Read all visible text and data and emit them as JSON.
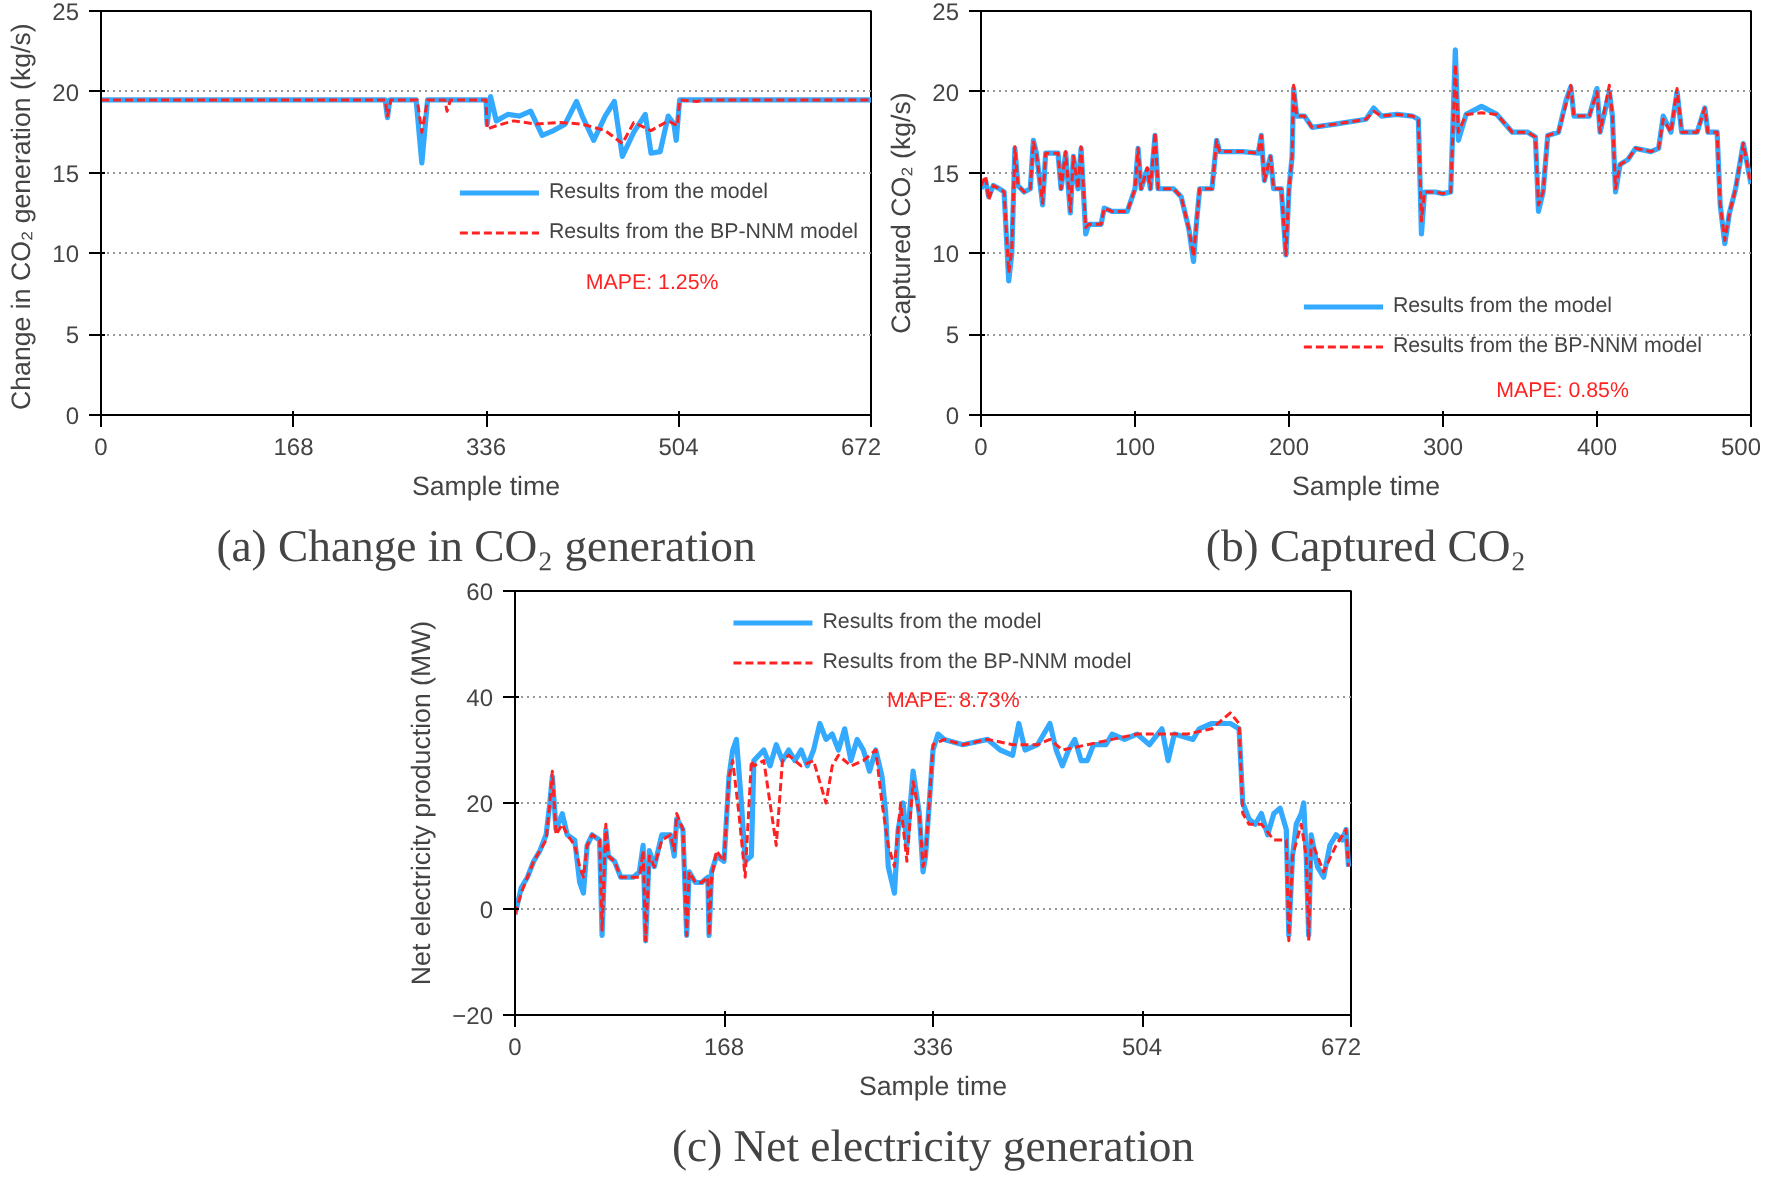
{
  "chart_data": [
    {
      "type": "line",
      "title": "(a) Change in CO₂ generation",
      "xlabel": "Sample time",
      "ylabel": "Change in  CO₂ generation (kg/s)",
      "xlim": [
        0,
        672
      ],
      "xticks": [
        0,
        168,
        336,
        504,
        672
      ],
      "ylim": [
        0,
        25
      ],
      "yticks": [
        0,
        5,
        10,
        15,
        20,
        25
      ],
      "grid": "y",
      "legend": "right",
      "annotations": [
        "MAPE: 1.25%"
      ],
      "series": [
        {
          "name": "Results from the model",
          "color": "#33aaff",
          "line_style": "solid",
          "x": [
            0,
            248,
            250,
            252,
            275,
            280,
            285,
            336,
            337,
            340,
            345,
            355,
            365,
            375,
            385,
            395,
            405,
            415,
            420,
            430,
            440,
            448,
            455,
            465,
            475,
            480,
            488,
            495,
            500,
            502,
            505,
            672
          ],
          "values": [
            19.5,
            19.5,
            18.4,
            19.5,
            19.5,
            15.6,
            19.5,
            19.5,
            18,
            19.7,
            18.2,
            18.6,
            18.5,
            18.8,
            17.3,
            17.6,
            18,
            19.4,
            18.5,
            17,
            18.5,
            19.4,
            16,
            17.5,
            18.6,
            16.2,
            16.3,
            18.5,
            18,
            17,
            19.5,
            19.5
          ]
        },
        {
          "name": "Results from the BP-NNM model",
          "color": "#ff2222",
          "line_style": "dashed",
          "x": [
            0,
            248,
            250,
            253,
            276,
            280,
            285,
            300,
            302,
            305,
            336,
            337,
            345,
            360,
            380,
            400,
            420,
            440,
            455,
            465,
            480,
            495,
            503,
            505,
            520,
            525,
            672
          ],
          "values": [
            19.5,
            19.5,
            18.5,
            19.5,
            19.5,
            17.5,
            19.5,
            19.5,
            18.8,
            19.5,
            19.5,
            17.7,
            17.9,
            18.2,
            18,
            18.1,
            18,
            17.6,
            16.8,
            18.1,
            17.6,
            18.2,
            17.9,
            19.5,
            19.4,
            19.5,
            19.5
          ]
        }
      ]
    },
    {
      "type": "line",
      "title": "(b) Captured CO₂",
      "xlabel": "Sample time",
      "ylabel": "Captured CO₂ (kg/s)",
      "xlim": [
        0,
        500
      ],
      "xticks": [
        0,
        100,
        200,
        300,
        400,
        500
      ],
      "ylim": [
        0,
        25
      ],
      "yticks": [
        0,
        5,
        10,
        15,
        20,
        25
      ],
      "grid": "y",
      "legend": "bottom right",
      "annotations": [
        "MAPE: 0.85%"
      ],
      "series": [
        {
          "name": "Results from the model",
          "color": "#33aaff",
          "line_style": "solid",
          "x": [
            0,
            3,
            5,
            8,
            12,
            15,
            18,
            20,
            22,
            24,
            28,
            32,
            34,
            36,
            40,
            42,
            50,
            52,
            55,
            58,
            60,
            63,
            65,
            68,
            70,
            78,
            80,
            85,
            95,
            100,
            102,
            104,
            108,
            110,
            113,
            115,
            125,
            130,
            135,
            138,
            140,
            142,
            150,
            153,
            155,
            170,
            180,
            182,
            184,
            188,
            190,
            195,
            198,
            200,
            202,
            203,
            205,
            210,
            215,
            230,
            250,
            255,
            260,
            270,
            280,
            284,
            286,
            288,
            295,
            300,
            305,
            308,
            310,
            315,
            325,
            335,
            345,
            355,
            360,
            362,
            365,
            368,
            375,
            380,
            383,
            385,
            395,
            400,
            402,
            408,
            410,
            412,
            415,
            420,
            425,
            435,
            440,
            443,
            448,
            452,
            455,
            465,
            470,
            472,
            478,
            480,
            483,
            486,
            490,
            495,
            500
          ],
          "values": [
            14,
            14.5,
            13.5,
            14.2,
            14,
            13.8,
            8.3,
            10,
            16.5,
            14.2,
            13.8,
            14,
            17,
            16.2,
            13,
            16.2,
            16.2,
            14,
            16.2,
            12.5,
            16,
            14,
            16.5,
            11.2,
            11.8,
            11.8,
            12.8,
            12.6,
            12.6,
            14,
            16.5,
            14,
            15.2,
            14,
            17.3,
            14,
            14,
            13.5,
            11.5,
            9.5,
            12,
            14,
            14,
            17,
            16.3,
            16.3,
            16.2,
            17.3,
            14.5,
            16,
            14,
            14,
            9.9,
            14,
            16,
            20.2,
            18.5,
            18.5,
            17.8,
            18,
            18.3,
            19,
            18.5,
            18.6,
            18.5,
            18.3,
            11.2,
            13.8,
            13.8,
            13.7,
            13.8,
            22.6,
            17,
            18.6,
            19.1,
            18.6,
            17.5,
            17.5,
            17.2,
            12.6,
            13.8,
            17.3,
            17.5,
            19.5,
            20.3,
            18.5,
            18.5,
            20.2,
            17.5,
            20,
            18.5,
            13.8,
            15.5,
            15.8,
            16.5,
            16.3,
            16.5,
            18.5,
            17.5,
            20,
            17.5,
            17.5,
            19,
            17.5,
            17.5,
            13,
            10.6,
            12.5,
            14,
            16.8,
            14.3
          ]
        },
        {
          "name": "Results from the BP-NNM model",
          "color": "#ff2222",
          "line_style": "dashed",
          "x": [
            0,
            3,
            5,
            8,
            12,
            15,
            18,
            20,
            22,
            24,
            28,
            32,
            34,
            36,
            40,
            42,
            50,
            52,
            55,
            58,
            60,
            63,
            65,
            68,
            70,
            78,
            80,
            85,
            95,
            100,
            102,
            104,
            108,
            110,
            113,
            115,
            125,
            130,
            135,
            138,
            140,
            142,
            150,
            153,
            155,
            170,
            180,
            182,
            184,
            188,
            190,
            195,
            198,
            200,
            202,
            203,
            205,
            210,
            215,
            230,
            250,
            255,
            260,
            270,
            280,
            284,
            286,
            288,
            295,
            300,
            305,
            308,
            310,
            315,
            325,
            335,
            345,
            355,
            360,
            362,
            365,
            368,
            375,
            380,
            383,
            385,
            395,
            400,
            402,
            408,
            410,
            412,
            415,
            420,
            425,
            435,
            440,
            443,
            448,
            452,
            455,
            465,
            470,
            472,
            478,
            480,
            483,
            486,
            490,
            495,
            500
          ],
          "values": [
            14.2,
            14.8,
            13.3,
            14.2,
            14,
            13.8,
            8.8,
            10.2,
            16.6,
            14.2,
            13.8,
            14,
            16.9,
            16.2,
            13.1,
            16.2,
            16.2,
            14,
            16.3,
            12.6,
            16,
            14,
            16.6,
            11.6,
            11.8,
            11.8,
            12.8,
            12.6,
            12.6,
            14,
            16.5,
            14,
            15.3,
            14,
            17.5,
            14,
            14,
            13.5,
            11.5,
            9.8,
            12,
            14,
            14,
            17,
            16.3,
            16.3,
            16.2,
            17.3,
            14.5,
            16,
            14,
            14,
            9.9,
            14,
            16,
            20.4,
            18.5,
            18.5,
            17.8,
            18,
            18.3,
            18.8,
            18.5,
            18.6,
            18.5,
            18.3,
            12,
            13.8,
            13.8,
            13.7,
            13.8,
            21.7,
            17.5,
            18.6,
            18.7,
            18.6,
            17.5,
            17.5,
            17.2,
            13,
            13.8,
            17.3,
            17.5,
            19.3,
            20.4,
            18.5,
            18.5,
            20,
            17.5,
            20.4,
            18.5,
            14,
            15.5,
            15.8,
            16.5,
            16.3,
            16.5,
            18.3,
            17.5,
            20.2,
            17.5,
            17.5,
            19,
            17.5,
            17.5,
            13,
            10.8,
            12.5,
            14,
            16.8,
            14.3
          ]
        }
      ]
    },
    {
      "type": "line",
      "title": "(c) Net electricity generation",
      "xlabel": "Sample time",
      "ylabel": "Net electricity production (MW)",
      "xlim": [
        0,
        672
      ],
      "xticks": [
        0,
        168,
        336,
        504,
        672
      ],
      "ylim": [
        -20,
        60
      ],
      "yticks": [
        -20,
        0,
        20,
        40,
        60
      ],
      "grid": "y",
      "legend": "top",
      "annotations": [
        "MAPE: 8.73%"
      ],
      "series": [
        {
          "name": "Results from the model",
          "color": "#33aaff",
          "line_style": "solid",
          "x": [
            0,
            5,
            10,
            15,
            20,
            25,
            28,
            30,
            33,
            38,
            42,
            48,
            52,
            55,
            58,
            62,
            68,
            70,
            73,
            75,
            80,
            85,
            95,
            100,
            103,
            105,
            108,
            112,
            118,
            125,
            128,
            130,
            135,
            138,
            140,
            145,
            150,
            155,
            156,
            158,
            162,
            168,
            172,
            175,
            178,
            182,
            185,
            190,
            192,
            200,
            205,
            210,
            215,
            220,
            225,
            230,
            235,
            240,
            245,
            250,
            255,
            260,
            265,
            270,
            275,
            280,
            285,
            290,
            295,
            298,
            300,
            305,
            308,
            312,
            315,
            320,
            325,
            328,
            330,
            333,
            336,
            340,
            345,
            360,
            380,
            390,
            400,
            405,
            410,
            420,
            430,
            435,
            440,
            445,
            450,
            455,
            460,
            465,
            475,
            480,
            490,
            500,
            510,
            520,
            525,
            530,
            545,
            550,
            560,
            575,
            582,
            585,
            590,
            595,
            600,
            605,
            610,
            615,
            620,
            622,
            625,
            628,
            632,
            634,
            636,
            638,
            640,
            645,
            650,
            655,
            660,
            665,
            668,
            670
          ],
          "values": [
            -1,
            4,
            6,
            9,
            11,
            14,
            20,
            25,
            15,
            18,
            14,
            13,
            5,
            3,
            12,
            14,
            13,
            -5,
            15,
            10,
            9,
            6,
            6,
            7,
            12,
            -6,
            11,
            8,
            14,
            14,
            10,
            17,
            15,
            -5,
            7,
            5,
            5,
            6,
            -5,
            7,
            10,
            9,
            25,
            30,
            32,
            20,
            9,
            10,
            28,
            30,
            27,
            31,
            28,
            30,
            28,
            30,
            27,
            30,
            35,
            32,
            33,
            30,
            34,
            28,
            32,
            30,
            26,
            30,
            25,
            18,
            8,
            3,
            15,
            20,
            12,
            26,
            18,
            7,
            10,
            20,
            30,
            33,
            32,
            31,
            32,
            30,
            29,
            35,
            30,
            31,
            35,
            30,
            27,
            30,
            32,
            28,
            28,
            31,
            31,
            33,
            32,
            33,
            31,
            34,
            28,
            33,
            32,
            34,
            35,
            35,
            34,
            20,
            17,
            16,
            18,
            14,
            18,
            19,
            15,
            -5,
            10,
            16,
            18,
            20,
            10,
            -5,
            14,
            8,
            6,
            12,
            14,
            13,
            15,
            8
          ]
        },
        {
          "name": "Results from the BP-NNM model",
          "color": "#ff2222",
          "line_style": "dashed",
          "x": [
            0,
            5,
            10,
            15,
            20,
            25,
            28,
            30,
            33,
            38,
            42,
            48,
            52,
            55,
            58,
            62,
            68,
            70,
            73,
            75,
            80,
            85,
            95,
            100,
            103,
            105,
            108,
            112,
            118,
            125,
            128,
            130,
            135,
            138,
            140,
            145,
            150,
            155,
            156,
            158,
            162,
            168,
            172,
            175,
            180,
            185,
            190,
            192,
            200,
            210,
            215,
            220,
            230,
            240,
            245,
            250,
            255,
            260,
            270,
            280,
            290,
            295,
            300,
            305,
            310,
            315,
            320,
            325,
            328,
            330,
            333,
            336,
            345,
            360,
            380,
            400,
            420,
            430,
            440,
            460,
            480,
            500,
            520,
            540,
            560,
            575,
            582,
            585,
            590,
            600,
            610,
            620,
            622,
            625,
            632,
            636,
            638,
            640,
            650,
            660,
            668,
            670
          ],
          "values": [
            -1,
            3,
            6,
            9,
            11,
            13,
            20,
            26,
            14,
            16,
            14,
            12,
            8,
            6,
            12,
            14,
            13,
            -4,
            16,
            10,
            9,
            6,
            6,
            6,
            11,
            -6,
            10,
            8,
            13,
            14,
            11,
            18,
            15,
            -5,
            7,
            5,
            5,
            6,
            -5,
            6,
            11,
            9,
            25,
            28,
            18,
            6,
            28,
            27,
            28,
            12,
            28,
            29,
            27,
            28,
            24,
            20,
            27,
            29,
            27,
            28,
            30,
            20,
            12,
            8,
            20,
            9,
            24,
            18,
            8,
            10,
            20,
            31,
            32,
            31,
            32,
            31,
            31,
            32,
            30,
            31,
            32,
            33,
            33,
            33,
            34,
            37,
            35,
            18,
            16,
            16,
            13,
            13,
            -6,
            10,
            16,
            10,
            -6,
            13,
            7,
            12,
            15,
            8
          ]
        }
      ]
    }
  ]
}
